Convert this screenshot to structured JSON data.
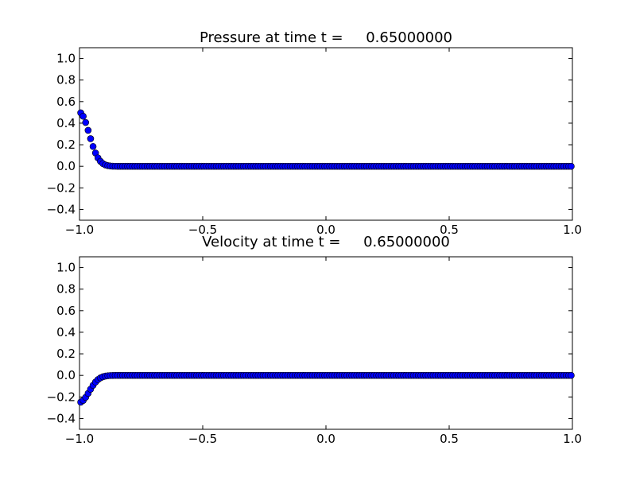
{
  "chart_data": [
    {
      "type": "scatter",
      "title": "Pressure at time t =     0.65000000",
      "xlabel": "",
      "ylabel": "",
      "xlim": [
        -1.0,
        1.0
      ],
      "ylim": [
        -0.5,
        1.1
      ],
      "xticks": [
        "−1.0",
        "−0.5",
        "0.0",
        "0.5",
        "1.0"
      ],
      "yticks": [
        "−0.4",
        "−0.2",
        "0.0",
        "0.2",
        "0.4",
        "0.6",
        "0.8",
        "1.0"
      ],
      "grid": false,
      "marker_color": "#0000ff",
      "series": [
        {
          "x_range": [
            -1.0,
            1.0
          ],
          "n_points": 200,
          "profile": {
            "kind": "gaussian_left",
            "peak": 0.5,
            "center": -1.0,
            "width": 0.055,
            "cutoff": -0.8
          }
        }
      ]
    },
    {
      "type": "scatter",
      "title": "Velocity at time t =     0.65000000",
      "xlabel": "",
      "ylabel": "",
      "xlim": [
        -1.0,
        1.0
      ],
      "ylim": [
        -0.5,
        1.1
      ],
      "xticks": [
        "−1.0",
        "−0.5",
        "0.0",
        "0.5",
        "1.0"
      ],
      "yticks": [
        "−0.4",
        "−0.2",
        "0.0",
        "0.2",
        "0.4",
        "0.6",
        "0.8",
        "1.0"
      ],
      "grid": false,
      "marker_color": "#0000ff",
      "series": [
        {
          "x_range": [
            -1.0,
            1.0
          ],
          "n_points": 200,
          "profile": {
            "kind": "gaussian_left",
            "peak": -0.25,
            "center": -1.0,
            "width": 0.055,
            "cutoff": -0.8
          }
        }
      ]
    }
  ]
}
